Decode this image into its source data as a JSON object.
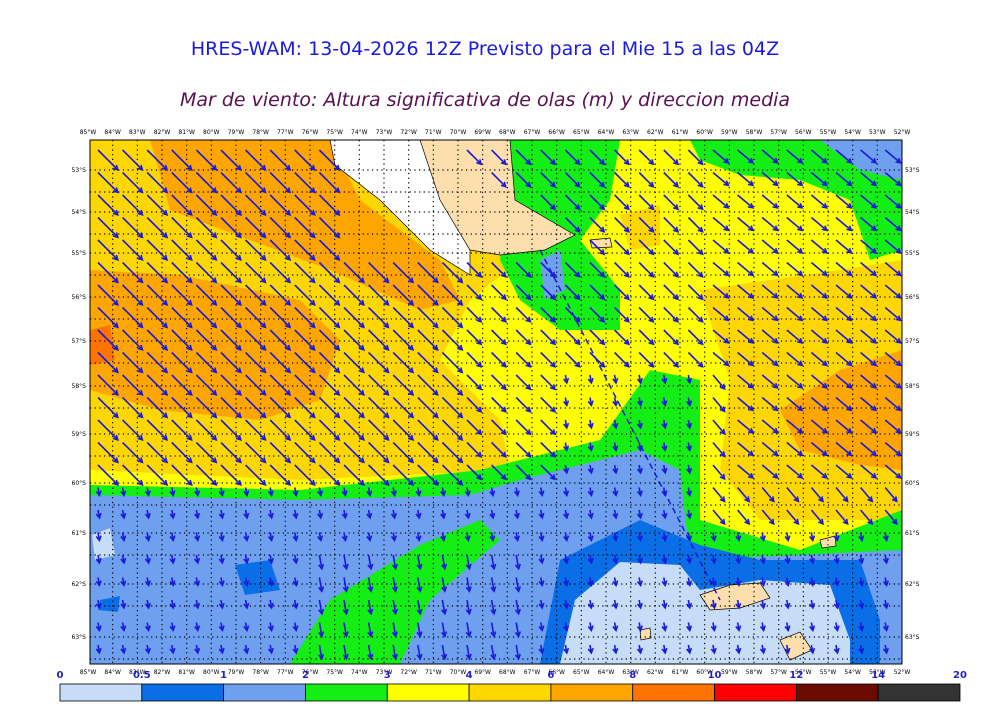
{
  "header": {
    "title": "HRES-WAM: 13-04-2026 12Z Previsto para el Mie 15 a las 04Z",
    "subtitle": "Mar de viento: Altura significativa de olas (m) y direccion media"
  },
  "map": {
    "longitudes": [
      "85°W",
      "84°W",
      "83°W",
      "82°W",
      "81°W",
      "80°W",
      "79°W",
      "78°W",
      "77°W",
      "76°W",
      "75°W",
      "74°W",
      "73°W",
      "72°W",
      "71°W",
      "70°W",
      "69°W",
      "68°W",
      "67°W",
      "66°W",
      "65°W",
      "64°W",
      "63°W",
      "62°W",
      "61°W",
      "60°W",
      "59°W",
      "58°W",
      "57°W",
      "56°W",
      "55°W",
      "54°W",
      "53°W",
      "52°W"
    ],
    "latitudes": [
      "53°S",
      "54°S",
      "55°S",
      "56°S",
      "57°S",
      "58°S",
      "59°S",
      "60°S",
      "61°S",
      "62°S",
      "63°S"
    ]
  },
  "colorbar": {
    "ticks": [
      0,
      0.5,
      1,
      2,
      3,
      4,
      6,
      8,
      10,
      12,
      14,
      20
    ],
    "colors": [
      "#c6dcf7",
      "#0a6ee6",
      "#6fa0ef",
      "#14ee14",
      "#ffff00",
      "#ffd700",
      "#ffa500",
      "#ff7300",
      "#ff0000",
      "#6b0a00",
      "#333333"
    ]
  }
}
